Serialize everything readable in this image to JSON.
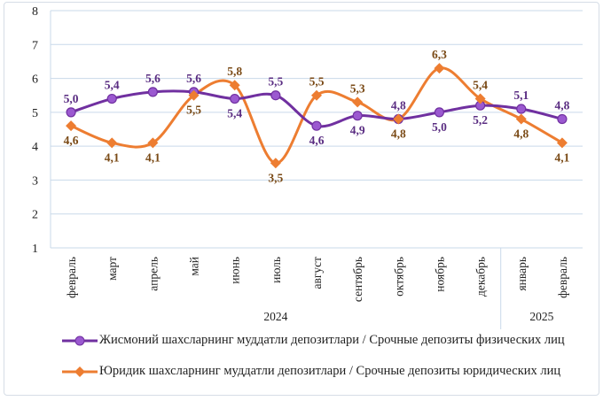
{
  "chart_data": {
    "type": "line",
    "categories": [
      "февраль",
      "март",
      "апрель",
      "май",
      "июнь",
      "июль",
      "август",
      "сентябрь",
      "октябрь",
      "ноябрь",
      "декабрь",
      "январь",
      "февраль"
    ],
    "year_groups": [
      {
        "label": "2024",
        "count": 11
      },
      {
        "label": "2025",
        "count": 2
      }
    ],
    "ylim": [
      1,
      8
    ],
    "yticks": [
      "1",
      "2",
      "3",
      "4",
      "5",
      "6",
      "7",
      "8"
    ],
    "grid": true,
    "legend_position": "bottom",
    "series": [
      {
        "name": "Жисмоний шахсларнинг  муддатли  депозитлари  / Срочные депозиты физических  лиц",
        "color": "#7030a0",
        "marker": "circle",
        "values": [
          5.0,
          5.4,
          5.6,
          5.6,
          5.4,
          5.5,
          4.6,
          4.9,
          4.8,
          5.0,
          5.2,
          5.1,
          4.8
        ],
        "labels": [
          "5,0",
          "5,4",
          "5,6",
          "5,6",
          "5,4",
          "5,5",
          "4,6",
          "4,9",
          "4,8",
          "5,0",
          "5,2",
          "5,1",
          "4,8"
        ]
      },
      {
        "name": "Юридик  шахсларнинг  муддатли  депозитлари  / Срочные депозиты юридических  лиц",
        "color": "#ed7d31",
        "marker": "diamond",
        "values": [
          4.6,
          4.1,
          4.1,
          5.5,
          5.8,
          3.5,
          5.5,
          5.3,
          4.8,
          6.3,
          5.4,
          4.8,
          4.1
        ],
        "labels": [
          "4,6",
          "4,1",
          "4,1",
          "5,5",
          "5,8",
          "3,5",
          "5,5",
          "5,3",
          "4,8",
          "6,3",
          "5,4",
          "4,8",
          "4,1"
        ]
      }
    ]
  }
}
